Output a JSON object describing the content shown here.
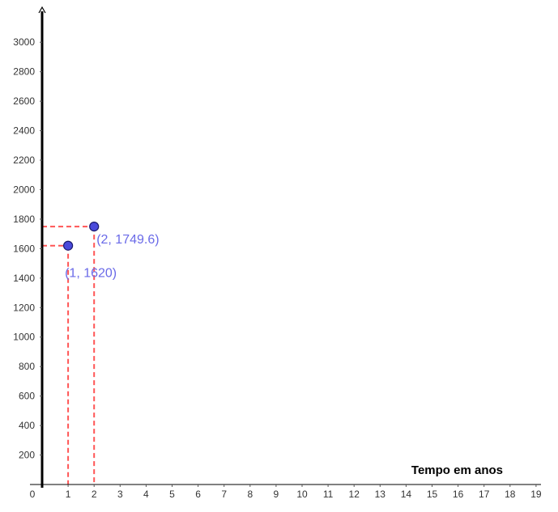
{
  "chart_data": {
    "type": "scatter",
    "xlabel": "Tempo em anos",
    "ylabel": "",
    "xlim": [
      0,
      19
    ],
    "ylim": [
      0,
      3000
    ],
    "x_ticks": [
      0,
      1,
      2,
      3,
      4,
      5,
      6,
      7,
      8,
      9,
      10,
      11,
      12,
      13,
      14,
      15,
      16,
      17,
      18,
      19
    ],
    "y_ticks": [
      200,
      400,
      600,
      800,
      1000,
      1200,
      1400,
      1600,
      1800,
      2000,
      2200,
      2400,
      2600,
      2800,
      3000
    ],
    "grid": false,
    "series": [
      {
        "points": [
          {
            "x": 1,
            "y": 1620,
            "label": "(1, 1620)"
          },
          {
            "x": 2,
            "y": 1749.6,
            "label": "(2, 1749.6)"
          }
        ]
      }
    ],
    "guide_lines": "dashed",
    "colors": {
      "point_fill": "#4a4adb",
      "point_stroke": "#1a1a6e",
      "label": "#6a6ae8",
      "guide": "#ff5555",
      "axis": "#000000"
    }
  }
}
